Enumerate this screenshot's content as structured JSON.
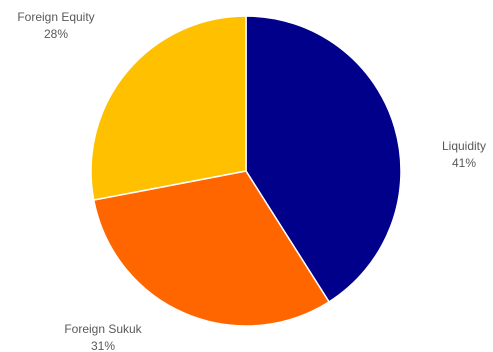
{
  "chart_data": {
    "type": "pie",
    "title": "",
    "slices": [
      {
        "label": "Liquidity",
        "value": 41,
        "display": "41%",
        "color": "#00008B"
      },
      {
        "label": "Foreign Sukuk",
        "value": 31,
        "display": "31%",
        "color": "#FF6600"
      },
      {
        "label": "Foreign Equity",
        "value": 28,
        "display": "28%",
        "color": "#FFC000"
      }
    ],
    "legend": "none",
    "start_angle_deg": 0,
    "direction": "clockwise"
  }
}
